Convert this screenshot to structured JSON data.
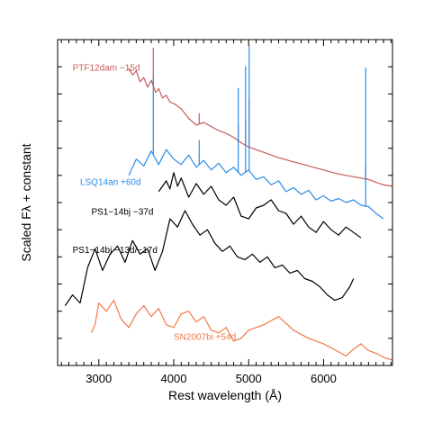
{
  "chart_data": {
    "type": "line",
    "xlabel": "Rest wavelength (Å)",
    "ylabel": "Scaled Fλ + constant",
    "xlim": [
      2450,
      6920
    ],
    "ylim": [
      0,
      12
    ],
    "x_ticks": [
      3000,
      4000,
      5000,
      6000
    ],
    "x_tick_labels": [
      "3000",
      "4000",
      "5000",
      "6000"
    ],
    "grid": false,
    "colors": {
      "ptf12dam": "#c85a5a",
      "lsq14an": "#2b8ce6",
      "ps1_37d": "#000000",
      "ps1_13d": "#000000",
      "sn2007bi": "#f07a46"
    },
    "series": [
      {
        "name": "PTF12dam −15d",
        "color": "#c85a5a",
        "x": [
          3400,
          3450,
          3500,
          3550,
          3600,
          3650,
          3700,
          3760,
          3800,
          3850,
          3900,
          3950,
          4000,
          4100,
          4200,
          4300,
          4400,
          4500,
          4600,
          4700,
          4800,
          4900,
          5000,
          5100,
          5200,
          5300,
          5400,
          5600,
          5800,
          6000,
          6200,
          6400,
          6600,
          6800,
          6920
        ],
        "y": [
          10.95,
          10.7,
          10.85,
          10.45,
          10.6,
          10.25,
          10.5,
          10.05,
          10.2,
          9.85,
          9.95,
          9.7,
          9.65,
          9.45,
          9.1,
          8.85,
          8.95,
          8.8,
          8.65,
          8.55,
          8.4,
          8.2,
          8.05,
          7.95,
          7.85,
          7.75,
          7.65,
          7.5,
          7.35,
          7.2,
          7.05,
          6.95,
          6.85,
          6.65,
          6.6
        ],
        "lines": [
          {
            "x": 3727,
            "height": 1.4
          },
          {
            "x": 4340,
            "height": 0.4
          },
          {
            "x": 4861,
            "height": 0.6
          },
          {
            "x": 4959,
            "height": 0.9
          },
          {
            "x": 5007,
            "height": 1.8
          },
          {
            "x": 6563,
            "height": 0.5
          }
        ]
      },
      {
        "name": "LSQ14an +60d",
        "color": "#2b8ce6",
        "x": [
          3400,
          3500,
          3600,
          3700,
          3800,
          3900,
          4000,
          4100,
          4200,
          4300,
          4400,
          4500,
          4600,
          4700,
          4800,
          4900,
          5000,
          5100,
          5200,
          5300,
          5400,
          5500,
          5600,
          5700,
          5800,
          5900,
          6000,
          6100,
          6200,
          6300,
          6400,
          6500,
          6600,
          6700,
          6800
        ],
        "y": [
          7.0,
          7.6,
          7.35,
          7.9,
          7.4,
          7.95,
          7.6,
          7.4,
          7.75,
          7.3,
          7.55,
          7.2,
          7.45,
          7.1,
          7.3,
          7.0,
          7.2,
          6.85,
          6.95,
          6.65,
          6.8,
          6.4,
          6.55,
          6.3,
          6.45,
          6.1,
          6.25,
          6.05,
          6.15,
          6.0,
          6.1,
          5.9,
          5.85,
          5.6,
          5.4
        ],
        "lines": [
          {
            "x": 3727,
            "height": 2.8
          },
          {
            "x": 4340,
            "height": 0.9
          },
          {
            "x": 4861,
            "height": 3.1
          },
          {
            "x": 4959,
            "height": 3.9
          },
          {
            "x": 5007,
            "height": 4.6
          },
          {
            "x": 6563,
            "height": 5.1
          }
        ]
      },
      {
        "name": "PS1−14bj −37d",
        "color": "#000000",
        "x": [
          3800,
          3900,
          3950,
          4000,
          4050,
          4100,
          4200,
          4300,
          4400,
          4500,
          4600,
          4700,
          4800,
          4900,
          5000,
          5100,
          5200,
          5300,
          5400,
          5500,
          5600,
          5700,
          5800,
          5900,
          6000,
          6100,
          6200,
          6300,
          6400,
          6500
        ],
        "y": [
          6.4,
          6.8,
          6.5,
          7.1,
          6.6,
          6.9,
          6.2,
          6.7,
          6.3,
          6.6,
          6.1,
          5.9,
          6.2,
          5.5,
          5.4,
          5.8,
          5.9,
          6.1,
          5.7,
          5.6,
          5.2,
          5.5,
          5.1,
          4.9,
          5.3,
          5.0,
          4.8,
          5.1,
          4.9,
          4.7
        ]
      },
      {
        "name": "PS1−14bj −13d/−17d",
        "color": "#000000",
        "x": [
          2550,
          2650,
          2750,
          2850,
          2950,
          3050,
          3150,
          3250,
          3350,
          3450,
          3550,
          3650,
          3750,
          3850,
          3950,
          4050,
          4150,
          4250,
          4350,
          4450,
          4550,
          4650,
          4750,
          4850,
          4950,
          5050,
          5150,
          5250,
          5350,
          5450,
          5550,
          5650,
          5750,
          5850,
          5950,
          6050,
          6150,
          6250,
          6350,
          6400
        ],
        "y": [
          2.2,
          2.6,
          2.3,
          3.6,
          4.3,
          3.5,
          4.1,
          4.4,
          3.8,
          4.6,
          4.1,
          4.3,
          3.5,
          4.2,
          5.4,
          5.1,
          5.7,
          5.2,
          4.8,
          5.0,
          4.5,
          4.2,
          4.4,
          4.0,
          3.9,
          4.1,
          3.8,
          4.0,
          3.6,
          3.7,
          3.4,
          3.5,
          3.2,
          3.1,
          2.9,
          2.6,
          2.4,
          2.5,
          2.9,
          3.2
        ]
      },
      {
        "name": "SN2007bi +54d",
        "color": "#f07a46",
        "x": [
          2900,
          2950,
          3000,
          3100,
          3200,
          3300,
          3400,
          3500,
          3600,
          3700,
          3800,
          3900,
          4000,
          4100,
          4200,
          4300,
          4400,
          4500,
          4600,
          4700,
          4800,
          4900,
          5000,
          5200,
          5400,
          5600,
          5800,
          6000,
          6200,
          6300,
          6400,
          6500,
          6600,
          6700,
          6800,
          6920
        ],
        "y": [
          1.2,
          1.5,
          2.3,
          2.0,
          2.4,
          1.7,
          1.4,
          1.9,
          2.2,
          1.8,
          2.1,
          1.5,
          1.4,
          1.9,
          2.0,
          1.6,
          1.8,
          1.3,
          1.2,
          1.4,
          0.9,
          1.0,
          1.3,
          1.5,
          1.8,
          1.3,
          1.0,
          0.8,
          0.5,
          0.35,
          0.6,
          0.8,
          0.55,
          0.45,
          0.3,
          0.2
        ]
      }
    ],
    "annotations": [
      {
        "text": "PTF12dam −15d",
        "x": 2650,
        "y": 10.85,
        "color": "#c85a5a"
      },
      {
        "text": "LSQ14an +60d",
        "x": 2750,
        "y": 6.65,
        "color": "#2b8ce6"
      },
      {
        "text": "PS1−14bj  −37d",
        "x": 2900,
        "y": 5.55,
        "color": "#000000"
      },
      {
        "text": "PS1−14bj  −13d/−17d",
        "x": 2650,
        "y": 4.15,
        "color": "#000000"
      },
      {
        "text": "SN2007bi +54d",
        "x": 4000,
        "y": 0.95,
        "color": "#f07a46"
      }
    ]
  }
}
